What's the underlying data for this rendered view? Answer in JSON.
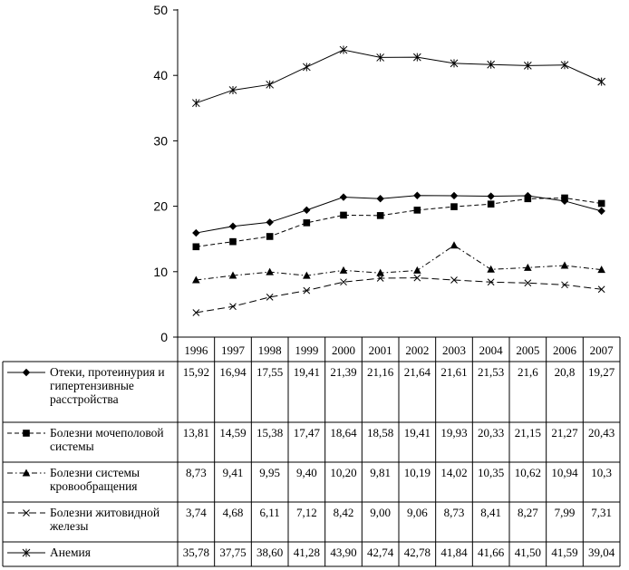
{
  "chart_data": {
    "type": "line",
    "x": [
      "1996",
      "1997",
      "1998",
      "1999",
      "2000",
      "2001",
      "2002",
      "2003",
      "2004",
      "2005",
      "2006",
      "2007"
    ],
    "ylim": [
      0,
      50
    ],
    "yticks": [
      "0",
      "10",
      "20",
      "30",
      "40",
      "50"
    ],
    "grid": false,
    "legend_position": "data-table-below",
    "series": [
      {
        "name_lines": [
          "Отеки, протеинурия и",
          "гипертензивные",
          "расстройства"
        ],
        "marker": "diamond",
        "dash": "solid",
        "values": [
          15.92,
          16.94,
          17.55,
          19.41,
          21.39,
          21.16,
          21.64,
          21.61,
          21.53,
          21.6,
          20.8,
          19.27
        ],
        "labels": [
          "15,92",
          "16,94",
          "17,55",
          "19,41",
          "21,39",
          "21,16",
          "21,64",
          "21,61",
          "21,53",
          "21,6",
          "20,8",
          "19,27"
        ]
      },
      {
        "name_lines": [
          "Болезни мочеполовой",
          "системы"
        ],
        "marker": "square",
        "dash": "dashed",
        "values": [
          13.81,
          14.59,
          15.38,
          17.47,
          18.64,
          18.58,
          19.41,
          19.93,
          20.33,
          21.15,
          21.27,
          20.43
        ],
        "labels": [
          "13,81",
          "14,59",
          "15,38",
          "17,47",
          "18,64",
          "18,58",
          "19,41",
          "19,93",
          "20,33",
          "21,15",
          "21,27",
          "20,43"
        ]
      },
      {
        "name_lines": [
          "Болезни системы",
          "кровообращения"
        ],
        "marker": "triangle",
        "dash": "dashdot",
        "values": [
          8.73,
          9.41,
          9.95,
          9.4,
          10.2,
          9.81,
          10.19,
          14.02,
          10.35,
          10.62,
          10.94,
          10.3
        ],
        "labels": [
          "8,73",
          "9,41",
          "9,95",
          "9,40",
          "10,20",
          "9,81",
          "10,19",
          "14,02",
          "10,35",
          "10,62",
          "10,94",
          "10,3"
        ]
      },
      {
        "name_lines": [
          "Болезни житовидной",
          "железы"
        ],
        "marker": "x",
        "dash": "longdash",
        "values": [
          3.74,
          4.68,
          6.11,
          7.12,
          8.42,
          9.0,
          9.06,
          8.73,
          8.41,
          8.27,
          7.99,
          7.31
        ],
        "labels": [
          "3,74",
          "4,68",
          "6,11",
          "7,12",
          "8,42",
          "9,00",
          "9,06",
          "8,73",
          "8,41",
          "8,27",
          "7,99",
          "7,31"
        ]
      },
      {
        "name_lines": [
          "Анемия"
        ],
        "marker": "star",
        "dash": "solid",
        "values": [
          35.78,
          37.75,
          38.6,
          41.28,
          43.9,
          42.74,
          42.78,
          41.84,
          41.66,
          41.5,
          41.59,
          39.04
        ],
        "labels": [
          "35,78",
          "37,75",
          "38,60",
          "41,28",
          "43,90",
          "42,74",
          "42,78",
          "41,84",
          "41,66",
          "41,50",
          "41,59",
          "39,04"
        ]
      }
    ]
  }
}
